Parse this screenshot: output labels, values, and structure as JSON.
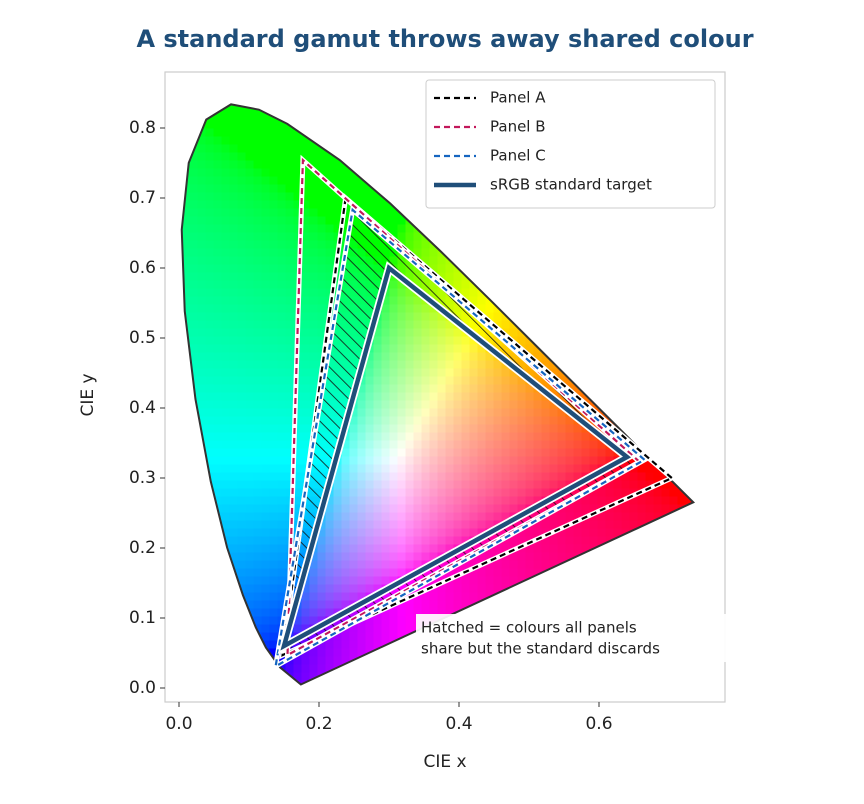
{
  "chart_data": {
    "type": "gamut",
    "title": "A standard gamut throws away shared colour",
    "x_label": "CIE x",
    "y_label": "CIE y",
    "xlim": [
      -0.02,
      0.78
    ],
    "ylim": [
      -0.02,
      0.88
    ],
    "xticks": [
      {
        "value": 0,
        "label": "0.0"
      },
      0.2,
      0.4,
      0.6
    ],
    "yticks": [
      {
        "value": 0,
        "label": "0.0"
      },
      0.1,
      0.2,
      0.3,
      0.4,
      0.5,
      0.6,
      0.7,
      0.8
    ],
    "locus": {
      "x": [
        0.1741,
        0.144,
        0.1241,
        0.1096,
        0.0913,
        0.0687,
        0.0454,
        0.0235,
        0.0082,
        0.0039,
        0.0139,
        0.0389,
        0.0743,
        0.1142,
        0.1547,
        0.2296,
        0.3016,
        0.3731,
        0.4441,
        0.5125,
        0.5752,
        0.627,
        0.6915,
        0.7347
      ],
      "y": [
        0.005,
        0.0297,
        0.0578,
        0.0868,
        0.1327,
        0.2007,
        0.295,
        0.4127,
        0.5384,
        0.6548,
        0.7502,
        0.812,
        0.8338,
        0.8262,
        0.8059,
        0.7543,
        0.6923,
        0.6245,
        0.5547,
        0.4866,
        0.4242,
        0.3725,
        0.3083,
        0.2653
      ],
      "color": "#333333"
    },
    "series": [
      {
        "name": "Panel A",
        "color": "#000000",
        "dashed": true,
        "x": [
          0.704,
          0.238,
          0.148
        ],
        "y": [
          0.3,
          0.7,
          0.047
        ]
      },
      {
        "name": "Panel B",
        "color": "#c2185b",
        "dashed": true,
        "x": [
          0.658,
          0.177,
          0.155
        ],
        "y": [
          0.323,
          0.754,
          0.047
        ]
      },
      {
        "name": "Panel C",
        "color": "#1565c0",
        "dashed": true,
        "x": [
          0.665,
          0.248,
          0.138
        ],
        "y": [
          0.326,
          0.683,
          0.031
        ]
      },
      {
        "name": "sRGB standard target",
        "color": "#1f4e79",
        "dashed": false,
        "x": [
          0.64,
          0.3,
          0.15
        ],
        "y": [
          0.33,
          0.6,
          0.06
        ]
      }
    ],
    "annotation": [
      "Hatched = colours all panels",
      "share but the standard discards"
    ],
    "legend": "upper right"
  }
}
